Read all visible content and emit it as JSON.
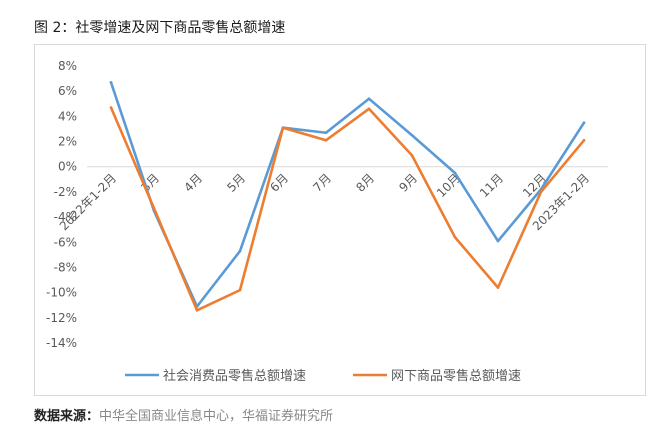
{
  "caption": "图 2：社零增速及网下商品零售总额增速",
  "source": {
    "label": "数据来源：",
    "text": "中华全国商业信息中心，华福证券研究所"
  },
  "chart_data": {
    "type": "line",
    "categories": [
      "2022年1-2月",
      "3月",
      "4月",
      "5月",
      "6月",
      "7月",
      "8月",
      "9月",
      "10月",
      "11月",
      "12月",
      "2023年1-2月"
    ],
    "y_ticks": [
      "8%",
      "6%",
      "4%",
      "2%",
      "0%",
      "-2%",
      "-4%",
      "-6%",
      "-8%",
      "-10%",
      "-12%",
      "-14%"
    ],
    "ylim": [
      -14,
      8
    ],
    "grid": false,
    "legend_position": "bottom",
    "series": [
      {
        "name": "社会消费品零售总额增速",
        "color": "#5b9bd5",
        "values": [
          6.7,
          -3.5,
          -11.1,
          -6.7,
          3.1,
          2.7,
          5.4,
          2.5,
          -0.5,
          -5.9,
          -1.8,
          3.5
        ]
      },
      {
        "name": "网下商品零售总额增速",
        "color": "#ed7d31",
        "values": [
          4.7,
          -3.3,
          -11.4,
          -9.8,
          3.1,
          2.1,
          4.6,
          0.9,
          -5.6,
          -9.6,
          -2.0,
          2.1
        ]
      }
    ]
  }
}
